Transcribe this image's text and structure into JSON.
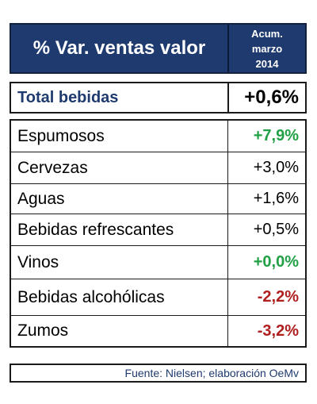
{
  "header": {
    "title": "% Var. ventas valor",
    "sub_line1": "Acum.",
    "sub_line2": "marzo",
    "sub_line3": "2014"
  },
  "total": {
    "label": "Total bebidas",
    "value_text": "+0,6%"
  },
  "colors": {
    "header_bg": "#1f3a6e",
    "positive": "#21a046",
    "negative": "#b01e1e",
    "neutral": "#000000"
  },
  "chart_data": {
    "type": "table",
    "title": "% Var. ventas valor",
    "columns": [
      "% Var. ventas valor",
      "Acum. marzo 2014"
    ],
    "total": {
      "category": "Total bebidas",
      "value": 0.6
    },
    "rows": [
      {
        "category": "Espumosos",
        "value": 7.9,
        "value_text": "+7,9%",
        "color": "#21a046",
        "bold": true
      },
      {
        "category": "Cervezas",
        "value": 3.0,
        "value_text": "+3,0%",
        "color": "#000000",
        "bold": false
      },
      {
        "category": "Aguas",
        "value": 1.6,
        "value_text": "+1,6%",
        "color": "#000000",
        "bold": false
      },
      {
        "category": "Bebidas refrescantes",
        "value": 0.5,
        "value_text": "+0,5%",
        "color": "#000000",
        "bold": false
      },
      {
        "category": "Vinos",
        "value": 0.0,
        "value_text": "+0,0%",
        "color": "#21a046",
        "bold": true
      },
      {
        "category": "Bebidas alcohólicas",
        "value": -2.2,
        "value_text": "-2,2%",
        "color": "#b01e1e",
        "bold": true
      },
      {
        "category": "Zumos",
        "value": -3.2,
        "value_text": "-3,2%",
        "color": "#b01e1e",
        "bold": true
      }
    ]
  },
  "footer": {
    "source": "Fuente: Nielsen; elaboración OeMv"
  }
}
